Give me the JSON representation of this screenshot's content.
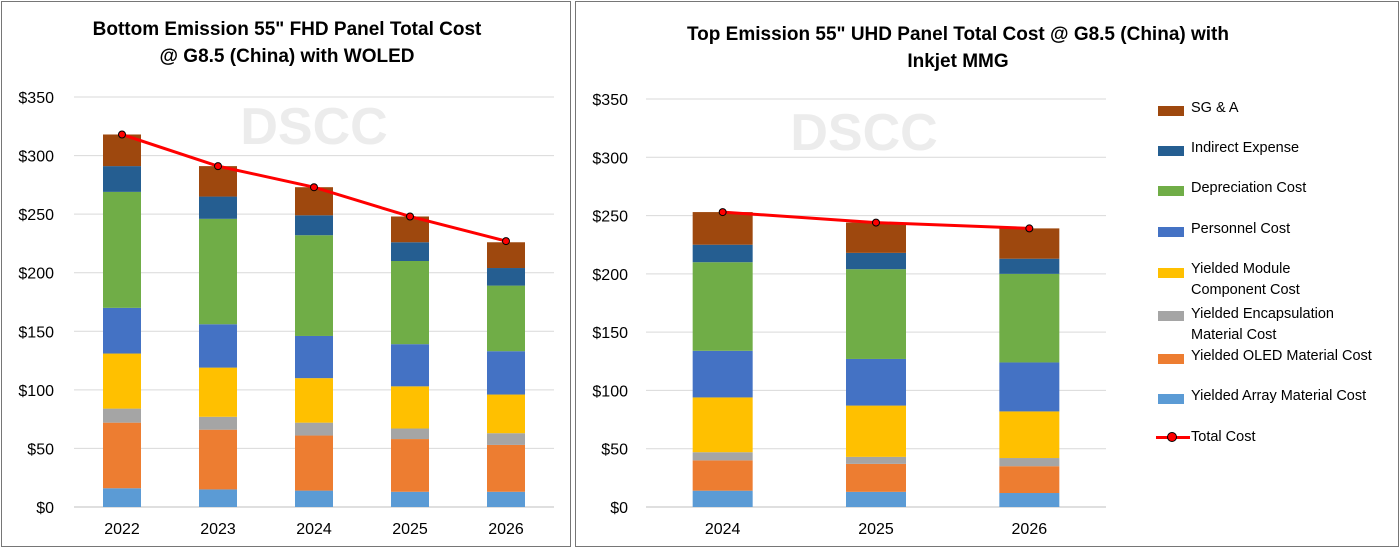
{
  "chart_data": [
    {
      "type": "bar",
      "stacked": true,
      "title_lines": [
        "Bottom Emission 55\" FHD  Panel Total Cost",
        "@ G8.5 (China) with WOLED"
      ],
      "watermark": "DSCC",
      "categories": [
        "2022",
        "2023",
        "2024",
        "2025",
        "2026"
      ],
      "y_ticks": [
        "$0",
        "$50",
        "$100",
        "$150",
        "$200",
        "$250",
        "$300",
        "$350"
      ],
      "ylim": [
        0,
        350
      ],
      "grid": true,
      "series": [
        {
          "name": "Yielded Array Material Cost",
          "color": "#5b9bd5",
          "values": [
            16,
            15,
            14,
            13,
            13
          ]
        },
        {
          "name": "Yielded OLED Material Cost",
          "color": "#ed7d31",
          "values": [
            56,
            51,
            47,
            45,
            40
          ]
        },
        {
          "name": "Yielded Encapsulation Material Cost",
          "color": "#a5a5a5",
          "values": [
            12,
            11,
            11,
            9,
            10
          ]
        },
        {
          "name": "Yielded Module Component Cost",
          "color": "#ffc000",
          "values": [
            47,
            42,
            38,
            36,
            33
          ]
        },
        {
          "name": "Personnel Cost",
          "color": "#4472c4",
          "values": [
            39,
            37,
            36,
            36,
            37
          ]
        },
        {
          "name": "Depreciation Cost",
          "color": "#70ad47",
          "values": [
            99,
            90,
            86,
            71,
            56
          ]
        },
        {
          "name": "Indirect Expense",
          "color": "#255e91",
          "values": [
            22,
            19,
            17,
            16,
            15
          ]
        },
        {
          "name": "SG & A",
          "color": "#9e480e",
          "values": [
            27,
            26,
            24,
            22,
            22
          ]
        }
      ],
      "line": {
        "name": "Total Cost",
        "color": "#ff0000",
        "values": [
          318,
          291,
          273,
          248,
          227
        ]
      }
    },
    {
      "type": "bar",
      "stacked": true,
      "title_lines": [
        "Top Emission 55\" UHD  Panel Total Cost @ G8.5 (China) with",
        "Inkjet MMG"
      ],
      "watermark": "DSCC",
      "categories": [
        "2024",
        "2025",
        "2026"
      ],
      "y_ticks": [
        "$0",
        "$50",
        "$100",
        "$150",
        "$200",
        "$250",
        "$300",
        "$350"
      ],
      "ylim": [
        0,
        350
      ],
      "grid": true,
      "legend_position": "right",
      "series": [
        {
          "name": "Yielded Array Material Cost",
          "color": "#5b9bd5",
          "values": [
            14,
            13,
            12
          ]
        },
        {
          "name": "Yielded OLED Material Cost",
          "color": "#ed7d31",
          "values": [
            26,
            24,
            23
          ]
        },
        {
          "name": "Yielded Encapsulation Material Cost",
          "color": "#a5a5a5",
          "values": [
            7,
            6,
            7
          ]
        },
        {
          "name": "Yielded Module Component Cost",
          "color": "#ffc000",
          "values": [
            47,
            44,
            40
          ]
        },
        {
          "name": "Personnel Cost",
          "color": "#4472c4",
          "values": [
            40,
            40,
            42
          ]
        },
        {
          "name": "Depreciation Cost",
          "color": "#70ad47",
          "values": [
            76,
            77,
            76
          ]
        },
        {
          "name": "Indirect Expense",
          "color": "#255e91",
          "values": [
            15,
            14,
            13
          ]
        },
        {
          "name": "SG & A",
          "color": "#9e480e",
          "values": [
            28,
            26,
            26
          ]
        }
      ],
      "line": {
        "name": "Total Cost",
        "color": "#ff0000",
        "values": [
          253,
          244,
          239
        ]
      }
    }
  ],
  "legend": {
    "items": [
      {
        "label": "SG & A",
        "color": "#9e480e",
        "kind": "bar"
      },
      {
        "label": "Indirect Expense",
        "color": "#255e91",
        "kind": "bar"
      },
      {
        "label": "Depreciation Cost",
        "color": "#70ad47",
        "kind": "bar"
      },
      {
        "label": "Personnel Cost",
        "color": "#4472c4",
        "kind": "bar"
      },
      {
        "label": "Yielded Module Component Cost",
        "color": "#ffc000",
        "kind": "bar"
      },
      {
        "label": "Yielded Encapsulation Material Cost",
        "color": "#a5a5a5",
        "kind": "bar"
      },
      {
        "label": "Yielded OLED Material Cost",
        "color": "#ed7d31",
        "kind": "bar"
      },
      {
        "label": "Yielded Array Material Cost",
        "color": "#5b9bd5",
        "kind": "bar"
      },
      {
        "label": "Total Cost",
        "color": "#ff0000",
        "kind": "line"
      }
    ]
  }
}
